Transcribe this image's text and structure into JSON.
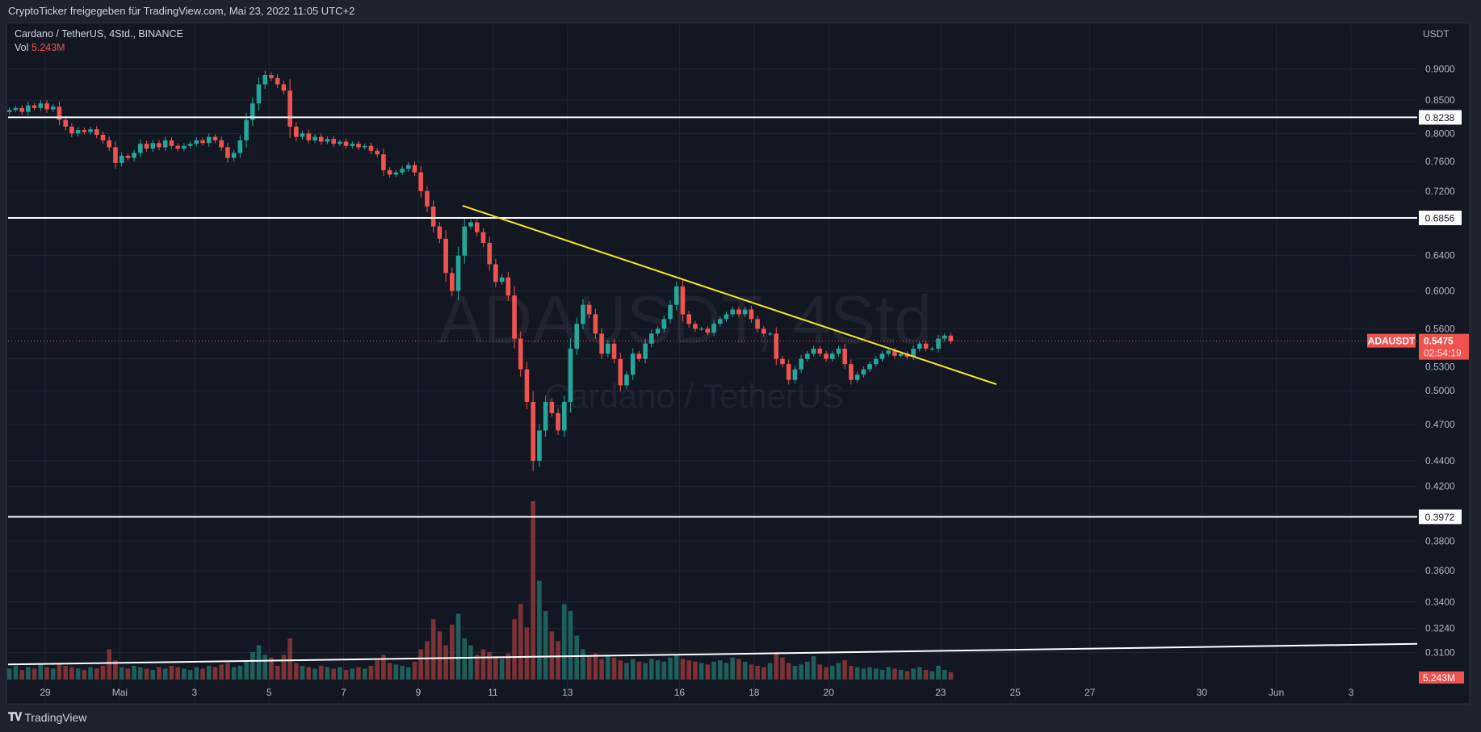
{
  "header": {
    "title": "CryptoTicker freigegeben für TradingView.com, Mai 23, 2022 11:05 UTC+2"
  },
  "legend": {
    "symbol_line": "Cardano / TetherUS, 4Std., BINANCE",
    "vol_label": "Vol",
    "vol_value": "5.243M"
  },
  "watermark": {
    "symbol": "ADAUSDT, 4Std.",
    "name": "Cardano / TetherUS"
  },
  "footer": {
    "logo_text": "TradingView"
  },
  "colors": {
    "up": "#26a69a",
    "down": "#ef5350",
    "up_vol": "#1f5f5b",
    "down_vol": "#7c3237",
    "trendline": "#f5e52b",
    "level": "#ffffff",
    "bg": "#131722",
    "grid": "#222631"
  },
  "chart_data": {
    "type": "candlestick",
    "title": "Cardano / TetherUS, 4Std., BINANCE",
    "axis_currency": "USDT",
    "scale": "log",
    "ylim": [
      0.305,
      0.93
    ],
    "y_ticks": [
      "0.9000",
      "0.8500",
      "0.8000",
      "0.7600",
      "0.7200",
      "0.6400",
      "0.6000",
      "0.5600",
      "0.5300",
      "0.5000",
      "0.4700",
      "0.4400",
      "0.4200",
      "0.3800",
      "0.3600",
      "0.3400",
      "0.3240",
      "0.3100"
    ],
    "x_ticks": [
      {
        "label": "29",
        "day": 1
      },
      {
        "label": "Mai",
        "day": 3
      },
      {
        "label": "3",
        "day": 5
      },
      {
        "label": "5",
        "day": 7
      },
      {
        "label": "7",
        "day": 9
      },
      {
        "label": "9",
        "day": 11
      },
      {
        "label": "11",
        "day": 13
      },
      {
        "label": "13",
        "day": 15
      },
      {
        "label": "16",
        "day": 18
      },
      {
        "label": "18",
        "day": 20
      },
      {
        "label": "20",
        "day": 22
      },
      {
        "label": "23",
        "day": 25
      },
      {
        "label": "25",
        "day": 27
      },
      {
        "label": "27",
        "day": 29
      },
      {
        "label": "30",
        "day": 32
      },
      {
        "label": "Jun",
        "day": 34
      },
      {
        "label": "3",
        "day": 36
      }
    ],
    "candles_per_day": 6,
    "first_open": 0.832,
    "closes": [
      0.835,
      0.838,
      0.832,
      0.842,
      0.838,
      0.845,
      0.836,
      0.84,
      0.82,
      0.81,
      0.8,
      0.805,
      0.802,
      0.806,
      0.798,
      0.79,
      0.78,
      0.758,
      0.768,
      0.765,
      0.772,
      0.785,
      0.778,
      0.786,
      0.78,
      0.79,
      0.782,
      0.778,
      0.782,
      0.785,
      0.79,
      0.786,
      0.795,
      0.79,
      0.78,
      0.765,
      0.772,
      0.79,
      0.82,
      0.845,
      0.875,
      0.89,
      0.885,
      0.875,
      0.865,
      0.81,
      0.795,
      0.8,
      0.79,
      0.795,
      0.788,
      0.792,
      0.785,
      0.788,
      0.782,
      0.785,
      0.78,
      0.782,
      0.775,
      0.77,
      0.748,
      0.742,
      0.745,
      0.75,
      0.755,
      0.745,
      0.72,
      0.7,
      0.675,
      0.66,
      0.62,
      0.6,
      0.64,
      0.675,
      0.68,
      0.668,
      0.655,
      0.63,
      0.61,
      0.615,
      0.595,
      0.55,
      0.52,
      0.49,
      0.44,
      0.465,
      0.49,
      0.48,
      0.465,
      0.49,
      0.54,
      0.565,
      0.585,
      0.575,
      0.555,
      0.535,
      0.545,
      0.53,
      0.505,
      0.515,
      0.535,
      0.53,
      0.545,
      0.555,
      0.56,
      0.57,
      0.585,
      0.605,
      0.575,
      0.565,
      0.56,
      0.56,
      0.556,
      0.565,
      0.57,
      0.575,
      0.58,
      0.575,
      0.58,
      0.57,
      0.56,
      0.555,
      0.555,
      0.53,
      0.525,
      0.51,
      0.52,
      0.53,
      0.535,
      0.54,
      0.535,
      0.53,
      0.535,
      0.54,
      0.525,
      0.51,
      0.515,
      0.52,
      0.525,
      0.53,
      0.535,
      0.538,
      0.533,
      0.535,
      0.532,
      0.54,
      0.545,
      0.54,
      0.54,
      0.55,
      0.553,
      0.5475
    ],
    "volumes_m": [
      8,
      10,
      7,
      9,
      8,
      11,
      9,
      8,
      12,
      10,
      9,
      8,
      7,
      9,
      8,
      10,
      22,
      14,
      9,
      8,
      10,
      9,
      8,
      7,
      9,
      8,
      10,
      9,
      8,
      7,
      9,
      8,
      10,
      9,
      11,
      12,
      9,
      10,
      14,
      20,
      25,
      18,
      16,
      10,
      18,
      30,
      12,
      10,
      9,
      8,
      10,
      9,
      8,
      9,
      7,
      8,
      9,
      8,
      10,
      14,
      18,
      12,
      11,
      10,
      9,
      13,
      22,
      28,
      44,
      35,
      25,
      40,
      48,
      30,
      25,
      18,
      22,
      20,
      17,
      15,
      19,
      44,
      55,
      38,
      130,
      72,
      50,
      35,
      28,
      55,
      50,
      32,
      22,
      17,
      19,
      15,
      18,
      16,
      14,
      12,
      15,
      13,
      12,
      15,
      14,
      13,
      16,
      18,
      15,
      14,
      13,
      12,
      11,
      13,
      14,
      12,
      16,
      15,
      13,
      11,
      10,
      9,
      12,
      20,
      16,
      12,
      10,
      11,
      13,
      17,
      11,
      9,
      10,
      12,
      14,
      10,
      9,
      8,
      9,
      8,
      7,
      9,
      8,
      7,
      6,
      8,
      9,
      7,
      6,
      10,
      7,
      5.243
    ],
    "level_lines": [
      {
        "price": 0.8238,
        "label": "0.8238"
      },
      {
        "price": 0.6856,
        "label": "0.6856"
      },
      {
        "price": 0.3972,
        "label": "0.3972"
      }
    ],
    "trendline": {
      "from": {
        "candle": 72.7,
        "price": 0.701
      },
      "to": {
        "candle": 158.3,
        "price": 0.506
      }
    },
    "volume_trendline": {
      "from": {
        "candle": 0,
        "volume_m": 11
      },
      "to": {
        "candle": 226,
        "volume_m": 26
      }
    },
    "last_price": {
      "symbol": "ADAUSDT",
      "price": "0.5475",
      "countdown": "02:54:19"
    },
    "volume_label": "5.243M"
  }
}
